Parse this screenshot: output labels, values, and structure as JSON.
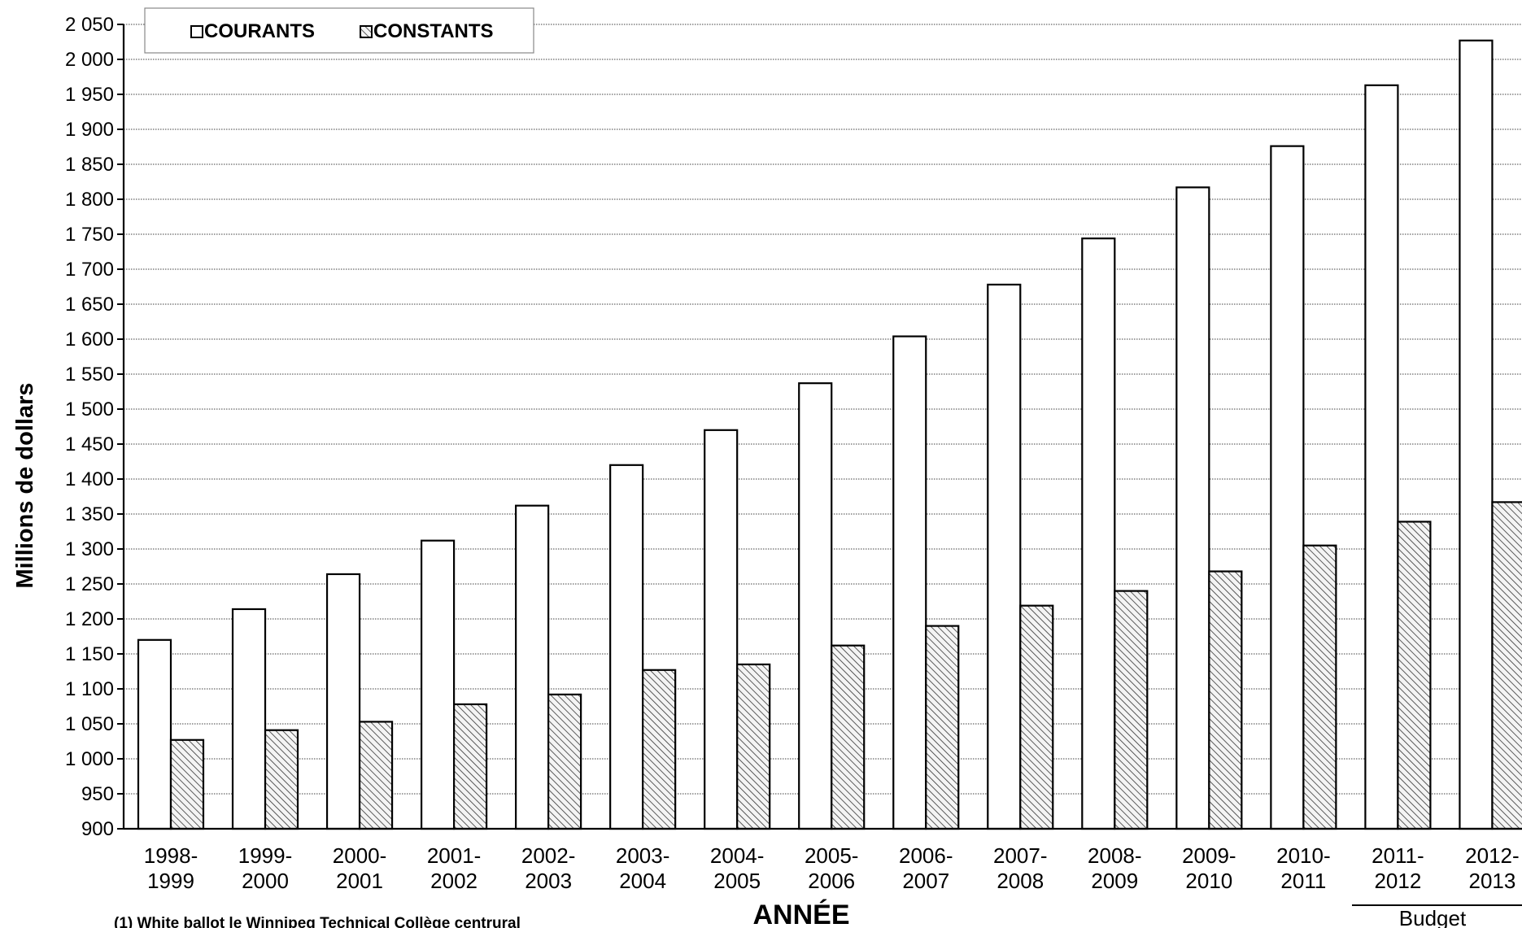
{
  "chart_data": {
    "type": "bar",
    "title": "",
    "xlabel": "ANNÉE",
    "ylabel": "Millions de dollars",
    "ylim": [
      900,
      2050
    ],
    "ytick_step": 50,
    "y_tick_labels": [
      "900",
      "950",
      "1 000",
      "1 050",
      "1 100",
      "1 150",
      "1 200",
      "1 250",
      "1 300",
      "1 350",
      "1 400",
      "1 450",
      "1 500",
      "1 550",
      "1 600",
      "1 650",
      "1 700",
      "1 750",
      "1 800",
      "1 850",
      "1 900",
      "1 950",
      "2 000",
      "2 050"
    ],
    "grid": true,
    "legend_position": "top-left",
    "categories": [
      [
        "1998-",
        "1999"
      ],
      [
        "1999-",
        "2000"
      ],
      [
        "2000-",
        "2001"
      ],
      [
        "2001-",
        "2002"
      ],
      [
        "2002-",
        "2003"
      ],
      [
        "2003-",
        "2004"
      ],
      [
        "2004-",
        "2005"
      ],
      [
        "2005-",
        "2006"
      ],
      [
        "2006-",
        "2007"
      ],
      [
        "2007-",
        "2008"
      ],
      [
        "2008-",
        "2009"
      ],
      [
        "2009-",
        "2010"
      ],
      [
        "2010-",
        "2011"
      ],
      [
        "2011-",
        "2012"
      ],
      [
        "2012-",
        "2013"
      ]
    ],
    "series": [
      {
        "name": "COURANTS",
        "fill": "#ffffff",
        "values": [
          1170,
          1214,
          1264,
          1312,
          1362,
          1420,
          1470,
          1537,
          1604,
          1678,
          1744,
          1817,
          1876,
          1963,
          2027
        ]
      },
      {
        "name": "CONSTANTS",
        "fill": "hatched",
        "values": [
          1027,
          1041,
          1053,
          1078,
          1092,
          1127,
          1135,
          1162,
          1190,
          1219,
          1240,
          1268,
          1305,
          1339,
          1367
        ]
      }
    ],
    "annotations": {
      "budget_label": "Budget"
    },
    "footnote": "(1) White ballot le Winnipeg Technical Collège centrural"
  },
  "colors": {
    "bar_stroke": "#000000",
    "grid": "#000000",
    "hatch_bg": "#f4f4f4",
    "hatch_line": "#333333"
  }
}
